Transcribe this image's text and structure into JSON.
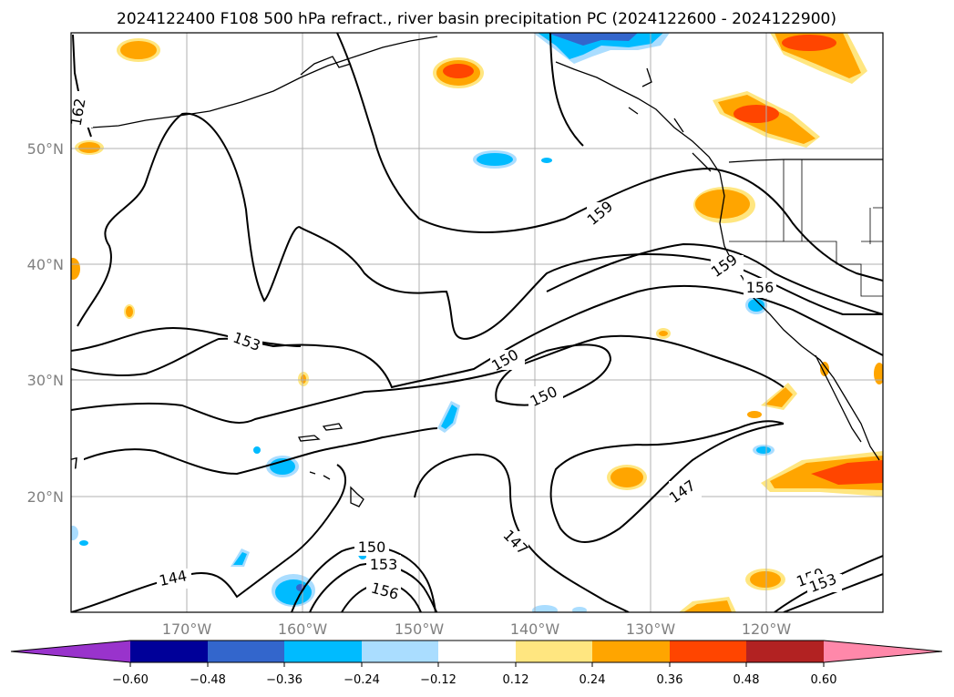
{
  "title": "2024122400 F108 500 hPa refract., river basin precipitation PC (2024122600 - 2024122900)",
  "map": {
    "lon_range": [
      -180,
      -110
    ],
    "lat_range": [
      10,
      60
    ],
    "latitudes": [
      {
        "value": 50,
        "label": "50°N"
      },
      {
        "value": 40,
        "label": "40°N"
      },
      {
        "value": 30,
        "label": "30°N"
      },
      {
        "value": 20,
        "label": "20°N"
      }
    ],
    "longitudes": [
      {
        "value": -170,
        "label": "170°W"
      },
      {
        "value": -160,
        "label": "160°W"
      },
      {
        "value": -150,
        "label": "150°W"
      },
      {
        "value": -140,
        "label": "140°W"
      },
      {
        "value": -130,
        "label": "130°W"
      },
      {
        "value": -120,
        "label": "120°W"
      }
    ],
    "contour_labels": [
      "162",
      "159",
      "159",
      "156",
      "153",
      "150",
      "150",
      "147",
      "147",
      "150",
      "153",
      "156",
      "144",
      "150",
      "153",
      "7"
    ]
  },
  "colorbar": {
    "ticks": [
      "−0.60",
      "−0.48",
      "−0.36",
      "−0.24",
      "−0.12",
      "0.12",
      "0.24",
      "0.36",
      "0.48",
      "0.60"
    ],
    "colors": [
      "#9933cc",
      "#000099",
      "#3366cc",
      "#00bbff",
      "#aaddff",
      "#ffffff",
      "#ffe680",
      "#ffa500",
      "#ff4500",
      "#b22222",
      "#ff88aa"
    ]
  }
}
